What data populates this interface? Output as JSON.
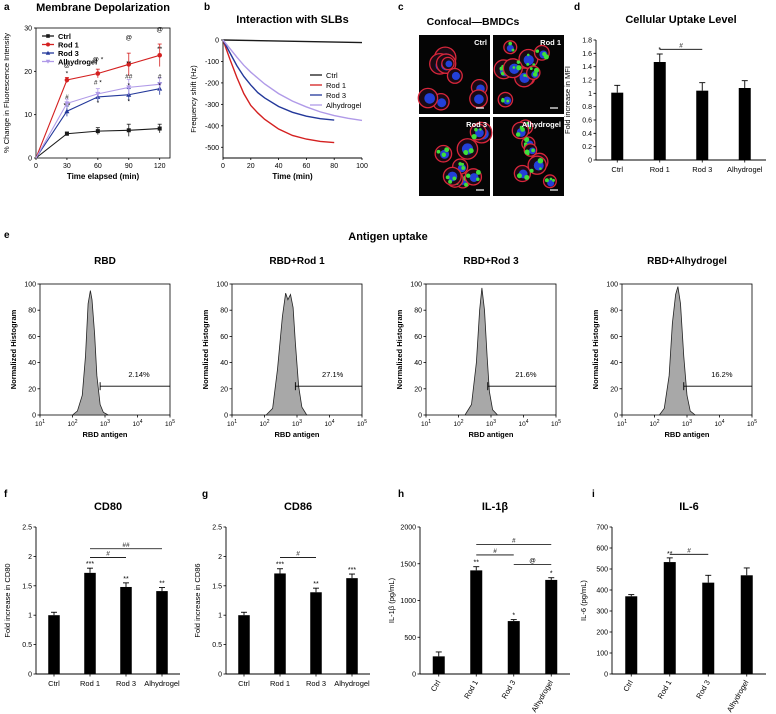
{
  "section_title": "Antigen uptake",
  "colors": {
    "ctrl": "#1a1a1a",
    "rod1": "#d42020",
    "rod3": "#23389a",
    "alhy": "#b09ae8",
    "hist_fill": "#a8a8a8"
  },
  "chart_data": [
    {
      "id": "a",
      "letter": "a",
      "type": "line",
      "title": "Membrane Depolarization",
      "xlabel": "Time elapsed (min)",
      "ylabel": "% Change in Fluorescence Intensity",
      "xlim": [
        0,
        130
      ],
      "ylim": [
        0,
        30
      ],
      "xticks": [
        "0",
        "30",
        "60",
        "90",
        "120"
      ],
      "yticks": [
        "0",
        "10",
        "20",
        "30"
      ],
      "x": [
        30,
        60,
        90,
        120
      ],
      "series": [
        {
          "name": "Ctrl",
          "color": "#1a1a1a",
          "marker": "square",
          "values": [
            5.6,
            6.2,
            6.4,
            6.8
          ],
          "err": [
            0.4,
            0.8,
            1.4,
            1.0
          ]
        },
        {
          "name": "Rod 1",
          "color": "#d42020",
          "marker": "circle",
          "values": [
            18.0,
            19.5,
            21.6,
            23.7
          ],
          "err": [
            0.6,
            1.0,
            2.6,
            2.6
          ]
        },
        {
          "name": "Rod 3",
          "color": "#23389a",
          "marker": "triangle",
          "values": [
            10.8,
            14.1,
            14.6,
            16.0
          ],
          "err": [
            1.2,
            1.0,
            1.4,
            1.4
          ]
        },
        {
          "name": "Alhydrogel",
          "color": "#b09ae8",
          "marker": "triangle-down",
          "values": [
            12.6,
            14.8,
            16.3,
            17.0
          ],
          "err": [
            1.0,
            1.2,
            1.8,
            1.5
          ]
        }
      ],
      "annotations": [
        {
          "x": 30,
          "y": 21.0,
          "text": "@"
        },
        {
          "x": 30,
          "y": 19.0,
          "text": "*"
        },
        {
          "x": 30,
          "y": 13.6,
          "text": "#"
        },
        {
          "x": 30,
          "y": 11.6,
          "text": "* *"
        },
        {
          "x": 60,
          "y": 22.3,
          "text": "@ *"
        },
        {
          "x": 60,
          "y": 17.0,
          "text": "# *"
        },
        {
          "x": 60,
          "y": 12.2,
          "text": "*"
        },
        {
          "x": 90,
          "y": 27.3,
          "text": "@"
        },
        {
          "x": 90,
          "y": 21.4,
          "text": "**"
        },
        {
          "x": 90,
          "y": 18.3,
          "text": "##"
        },
        {
          "x": 90,
          "y": 16.3,
          "text": "*"
        },
        {
          "x": 90,
          "y": 12.6,
          "text": "*"
        },
        {
          "x": 120,
          "y": 29.2,
          "text": "@"
        },
        {
          "x": 120,
          "y": 24.7,
          "text": "**"
        },
        {
          "x": 120,
          "y": 18.3,
          "text": "#"
        },
        {
          "x": 120,
          "y": 16.3,
          "text": "*"
        }
      ]
    },
    {
      "id": "b",
      "letter": "b",
      "type": "line",
      "title": "Interaction with SLBs",
      "xlabel": "Time (min)",
      "ylabel": "Frequency shift (Hz)",
      "xlim": [
        0,
        100
      ],
      "ylim": [
        -550,
        0
      ],
      "xticks": [
        "0",
        "20",
        "40",
        "60",
        "80",
        "100"
      ],
      "yticks": [
        "0",
        "-100",
        "-200",
        "-300",
        "-400",
        "-500"
      ],
      "series": [
        {
          "name": "Ctrl",
          "color": "#1a1a1a",
          "x": [
            0,
            100
          ],
          "values": [
            0,
            -12
          ]
        },
        {
          "name": "Rod 1",
          "color": "#d42020",
          "x": [
            0,
            5,
            10,
            15,
            20,
            25,
            30,
            40,
            50,
            60,
            70,
            80
          ],
          "values": [
            0,
            -90,
            -175,
            -250,
            -305,
            -340,
            -370,
            -415,
            -445,
            -462,
            -473,
            -478
          ]
        },
        {
          "name": "Rod 3",
          "color": "#23389a",
          "x": [
            0,
            5,
            10,
            15,
            20,
            25,
            30,
            40,
            50,
            60,
            70,
            80
          ],
          "values": [
            0,
            -60,
            -120,
            -170,
            -210,
            -245,
            -270,
            -310,
            -337,
            -355,
            -367,
            -373
          ]
        },
        {
          "name": "Alhydrogel",
          "color": "#b09ae8",
          "x": [
            0,
            5,
            10,
            15,
            20,
            30,
            40,
            50,
            60,
            70,
            80,
            90,
            100
          ],
          "values": [
            0,
            -40,
            -80,
            -118,
            -150,
            -205,
            -250,
            -285,
            -312,
            -335,
            -352,
            -365,
            -375
          ]
        }
      ]
    },
    {
      "id": "d",
      "letter": "d",
      "type": "bar",
      "title": "Cellular Uptake Level",
      "xlabel": "",
      "ylabel": "Fold increase in MFI",
      "ylim": [
        0,
        1.8
      ],
      "yticks": [
        "0",
        "0.2",
        "0.4",
        "0.6",
        "0.8",
        "1",
        "1.2",
        "1.4",
        "1.6",
        "1.8"
      ],
      "categories": [
        "Ctrl",
        "Rod 1",
        "Rod 3",
        "Alhydrogel"
      ],
      "values": [
        1.01,
        1.47,
        1.04,
        1.08
      ],
      "err": [
        0.11,
        0.12,
        0.12,
        0.11
      ],
      "stars": [
        "",
        "*",
        "",
        ""
      ],
      "brackets": [
        {
          "from": 1,
          "to": 2,
          "y": 1.66,
          "label": "#"
        }
      ]
    },
    {
      "id": "f",
      "letter": "f",
      "type": "bar",
      "title": "CD80",
      "xlabel": "",
      "ylabel": "Fold increase in CD80",
      "ylim": [
        0,
        2.5
      ],
      "yticks": [
        "0",
        "0.5",
        "1",
        "1.5",
        "2",
        "2.5"
      ],
      "categories": [
        "Ctrl",
        "Rod 1",
        "Rod 3",
        "Alhydrogel"
      ],
      "values": [
        1.0,
        1.72,
        1.48,
        1.41
      ],
      "err": [
        0.05,
        0.08,
        0.07,
        0.06
      ],
      "stars": [
        "",
        "***",
        "**",
        "**"
      ],
      "brackets": [
        {
          "from": 1,
          "to": 2,
          "y": 1.98,
          "label": "#"
        },
        {
          "from": 1,
          "to": 3,
          "y": 2.13,
          "label": "##"
        }
      ]
    },
    {
      "id": "g",
      "letter": "g",
      "type": "bar",
      "title": "CD86",
      "xlabel": "",
      "ylabel": "Fold increase in CD86",
      "ylim": [
        0,
        2.5
      ],
      "yticks": [
        "0",
        "0.5",
        "1",
        "1.5",
        "2",
        "2.5"
      ],
      "categories": [
        "Ctrl",
        "Rod 1",
        "Rod 3",
        "Alhydrogel"
      ],
      "values": [
        1.0,
        1.71,
        1.39,
        1.63
      ],
      "err": [
        0.05,
        0.08,
        0.07,
        0.07
      ],
      "stars": [
        "",
        "***",
        "**",
        "***"
      ],
      "brackets": [
        {
          "from": 1,
          "to": 2,
          "y": 1.98,
          "label": "#"
        }
      ]
    },
    {
      "id": "h",
      "letter": "h",
      "type": "bar",
      "title": "IL-1β",
      "xlabel": "",
      "ylabel": "IL-1β (pg/mL)",
      "ylim": [
        0,
        2000
      ],
      "yticks": [
        "0",
        "500",
        "1000",
        "1500",
        "2000"
      ],
      "categories": [
        "Ctrl",
        "Rod 1",
        "Rod 3",
        "Alhydrogel"
      ],
      "rotate_labels": true,
      "values": [
        240,
        1410,
        720,
        1280
      ],
      "err": [
        60,
        50,
        20,
        30
      ],
      "stars": [
        "",
        "**",
        "*",
        "*"
      ],
      "brackets": [
        {
          "from": 1,
          "to": 2,
          "y": 1620,
          "label": "#"
        },
        {
          "from": 2,
          "to": 3,
          "y": 1490,
          "label": "@"
        },
        {
          "from": 1,
          "to": 3,
          "y": 1760,
          "label": "#"
        }
      ]
    },
    {
      "id": "i",
      "letter": "i",
      "type": "bar",
      "title": "IL-6",
      "xlabel": "",
      "ylabel": "IL-6 (pg/mL)",
      "ylim": [
        0,
        700
      ],
      "yticks": [
        "0",
        "100",
        "200",
        "300",
        "400",
        "500",
        "600",
        "700"
      ],
      "categories": [
        "Ctrl",
        "Rod 1",
        "Rod 3",
        "Alhydrogel"
      ],
      "rotate_labels": true,
      "values": [
        370,
        533,
        435,
        470
      ],
      "err": [
        8,
        20,
        35,
        35
      ],
      "stars": [
        "",
        "**",
        "",
        ""
      ],
      "brackets": [
        {
          "from": 1,
          "to": 2,
          "y": 570,
          "label": "#"
        }
      ]
    },
    {
      "id": "e1",
      "letter": "e",
      "type": "histogram",
      "title": "RBD",
      "xlabel": "RBD antigen",
      "ylabel": "Normalized Histogram",
      "xlim_log": [
        1,
        5
      ],
      "ylim": [
        0,
        100
      ],
      "gate_start_log": 2.85,
      "gate_percent": "2.14%",
      "yticks": [
        "0",
        "20",
        "40",
        "60",
        "80",
        "100"
      ],
      "xticks_base": "10",
      "xticks_exp": [
        "1",
        "2",
        "3",
        "4",
        "5"
      ],
      "curve": [
        [
          2.0,
          0
        ],
        [
          2.15,
          3
        ],
        [
          2.3,
          15
        ],
        [
          2.4,
          45
        ],
        [
          2.48,
          85
        ],
        [
          2.55,
          95
        ],
        [
          2.6,
          88
        ],
        [
          2.68,
          62
        ],
        [
          2.75,
          30
        ],
        [
          2.85,
          8
        ],
        [
          2.95,
          2
        ],
        [
          3.1,
          0
        ]
      ]
    },
    {
      "id": "e2",
      "letter": "",
      "type": "histogram",
      "title": "RBD+Rod 1",
      "xlabel": "RBD antigen",
      "ylabel": "Normalized Histogram",
      "xlim_log": [
        1,
        5
      ],
      "ylim": [
        0,
        100
      ],
      "gate_start_log": 2.95,
      "gate_percent": "27.1%",
      "yticks": [
        "0",
        "20",
        "40",
        "60",
        "80",
        "100"
      ],
      "xticks_base": "10",
      "xticks_exp": [
        "1",
        "2",
        "3",
        "4",
        "5"
      ],
      "curve": [
        [
          2.05,
          0
        ],
        [
          2.25,
          5
        ],
        [
          2.4,
          35
        ],
        [
          2.55,
          75
        ],
        [
          2.65,
          93
        ],
        [
          2.72,
          88
        ],
        [
          2.8,
          92
        ],
        [
          2.88,
          82
        ],
        [
          2.95,
          55
        ],
        [
          3.05,
          22
        ],
        [
          3.15,
          6
        ],
        [
          3.3,
          0
        ]
      ]
    },
    {
      "id": "e3",
      "letter": "",
      "type": "histogram",
      "title": "RBD+Rod 3",
      "xlabel": "RBD antigen",
      "ylabel": "Normalized Histogram",
      "xlim_log": [
        1,
        5
      ],
      "ylim": [
        0,
        100
      ],
      "gate_start_log": 2.9,
      "gate_percent": "21.6%",
      "yticks": [
        "0",
        "20",
        "40",
        "60",
        "80",
        "100"
      ],
      "xticks_base": "10",
      "xticks_exp": [
        "1",
        "2",
        "3",
        "4",
        "5"
      ],
      "curve": [
        [
          2.2,
          0
        ],
        [
          2.4,
          8
        ],
        [
          2.55,
          40
        ],
        [
          2.65,
          80
        ],
        [
          2.72,
          97
        ],
        [
          2.8,
          80
        ],
        [
          2.88,
          45
        ],
        [
          2.95,
          18
        ],
        [
          3.05,
          4
        ],
        [
          3.2,
          0
        ]
      ]
    },
    {
      "id": "e4",
      "letter": "",
      "type": "histogram",
      "title": "RBD+Alhydrogel",
      "xlabel": "RBD antigen",
      "ylabel": "Normalized Histogram",
      "xlim_log": [
        1,
        5
      ],
      "ylim": [
        0,
        100
      ],
      "gate_start_log": 2.9,
      "gate_percent": "16.2%",
      "yticks": [
        "0",
        "20",
        "40",
        "60",
        "80",
        "100"
      ],
      "xticks_base": "10",
      "xticks_exp": [
        "1",
        "2",
        "3",
        "4",
        "5"
      ],
      "curve": [
        [
          2.15,
          0
        ],
        [
          2.3,
          5
        ],
        [
          2.45,
          30
        ],
        [
          2.55,
          70
        ],
        [
          2.65,
          92
        ],
        [
          2.72,
          98
        ],
        [
          2.8,
          85
        ],
        [
          2.9,
          45
        ],
        [
          3.0,
          15
        ],
        [
          3.1,
          3
        ],
        [
          3.25,
          0
        ]
      ]
    }
  ],
  "confocal": {
    "letter": "c",
    "title": "Confocal—BMDCs",
    "panels": [
      "Ctrl",
      "Rod 1",
      "Rod 3",
      "Alhydrogel"
    ]
  }
}
